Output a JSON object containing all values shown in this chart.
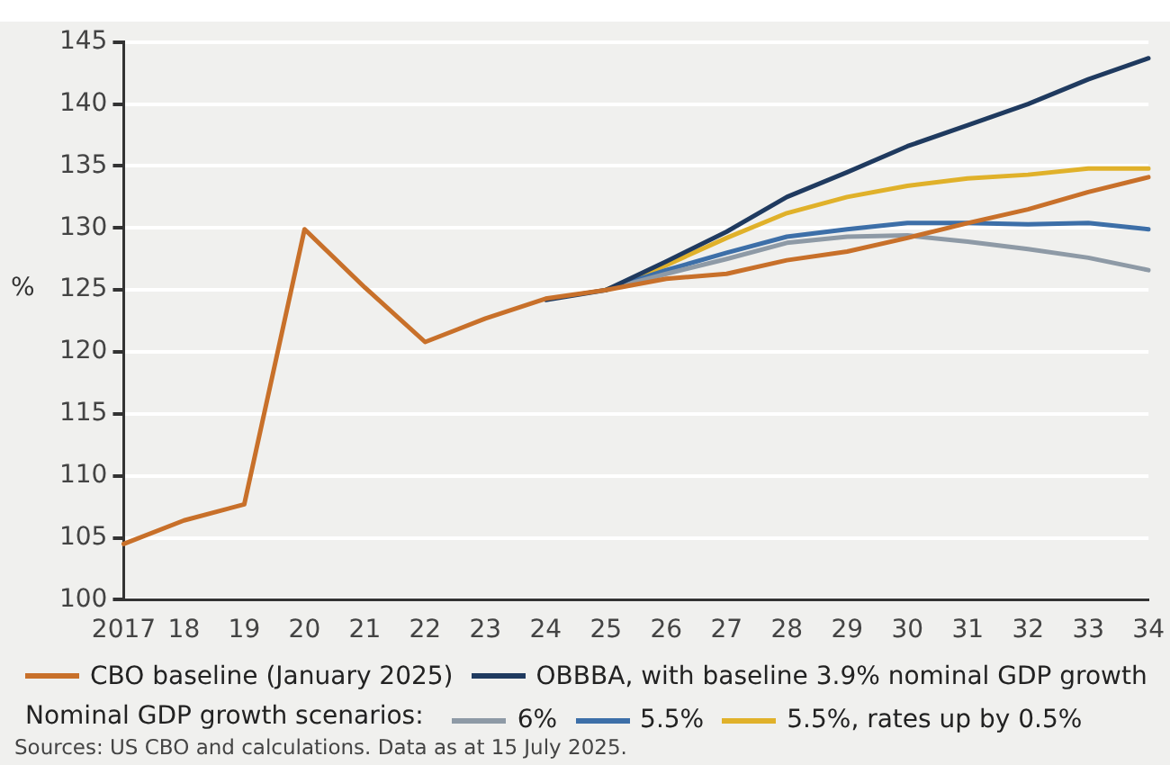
{
  "chart_data": {
    "type": "line",
    "ylabel": "%",
    "legend_title": "Nominal GDP growth scenarios:",
    "legend": "bottom",
    "grid": "y",
    "marker": "none",
    "line_style": "solid",
    "categories": [
      "2017",
      "18",
      "19",
      "20",
      "21",
      "22",
      "23",
      "24",
      "25",
      "26",
      "27",
      "28",
      "29",
      "30",
      "31",
      "32",
      "33",
      "34"
    ],
    "ylim": [
      100,
      145
    ],
    "yticks": [
      100,
      105,
      110,
      115,
      120,
      125,
      130,
      135,
      140,
      145
    ],
    "series": [
      {
        "name": "CBO baseline (January 2025)",
        "color": "#c8702a",
        "values": [
          104.5,
          106.4,
          107.7,
          129.9,
          125.2,
          120.8,
          122.7,
          124.3,
          125.0,
          125.9,
          126.3,
          127.4,
          128.1,
          129.2,
          130.4,
          131.5,
          132.9,
          134.1
        ]
      },
      {
        "name": "OBBBA, with baseline 3.9% nominal GDP growth",
        "color": "#1f3a5f",
        "values": [
          null,
          null,
          null,
          null,
          null,
          null,
          null,
          124.2,
          125.0,
          127.3,
          129.7,
          132.5,
          134.5,
          136.6,
          138.3,
          140.0,
          142.0,
          143.7
        ]
      },
      {
        "name": "6%",
        "color": "#8e9aa6",
        "values": [
          null,
          null,
          null,
          null,
          null,
          null,
          null,
          null,
          125.0,
          126.3,
          127.5,
          128.8,
          129.3,
          129.4,
          128.9,
          128.3,
          127.6,
          126.6
        ]
      },
      {
        "name": "5.5%",
        "color": "#3d6fa8",
        "values": [
          null,
          null,
          null,
          null,
          null,
          null,
          null,
          null,
          125.0,
          126.6,
          128.0,
          129.3,
          129.9,
          130.4,
          130.4,
          130.3,
          130.4,
          129.9
        ]
      },
      {
        "name": "5.5%, rates up by 0.5%",
        "color": "#e0b12a",
        "values": [
          null,
          null,
          null,
          null,
          null,
          null,
          null,
          null,
          125.0,
          127.0,
          129.2,
          131.2,
          132.5,
          133.4,
          134.0,
          134.3,
          134.8,
          134.8
        ]
      }
    ],
    "annotations": [
      "Sources: US CBO and calculations. Data as at 15 July 2025."
    ]
  }
}
